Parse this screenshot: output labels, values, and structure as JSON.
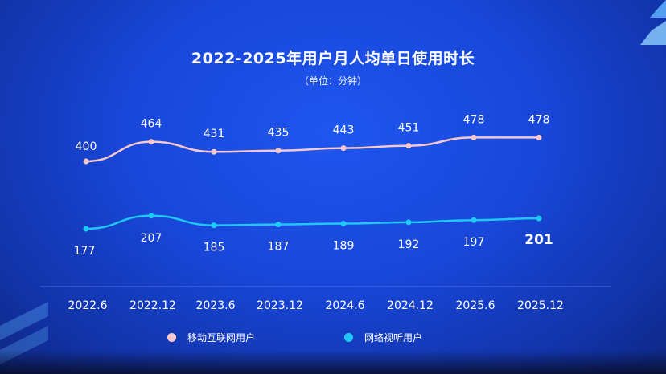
{
  "chart_data": {
    "type": "line",
    "title": "2022-2025年用户月人均单日使用时长",
    "subtitle": "（单位：分钟）",
    "categories": [
      "2022.6",
      "2022.12",
      "2023.6",
      "2023.12",
      "2024.6",
      "2024.12",
      "2025.6",
      "2025.12"
    ],
    "series": [
      {
        "name": "移动互联网用户",
        "values": [
          400,
          464,
          431,
          435,
          443,
          451,
          478,
          478
        ],
        "color": "#f6c8cc"
      },
      {
        "name": "网络视听用户",
        "values": [
          177,
          207,
          185,
          187,
          189,
          192,
          197,
          201
        ],
        "color": "#20c8f8"
      }
    ],
    "emphasized_label": {
      "series": 1,
      "index": 7
    },
    "grid": false,
    "legend_position": "bottom"
  }
}
